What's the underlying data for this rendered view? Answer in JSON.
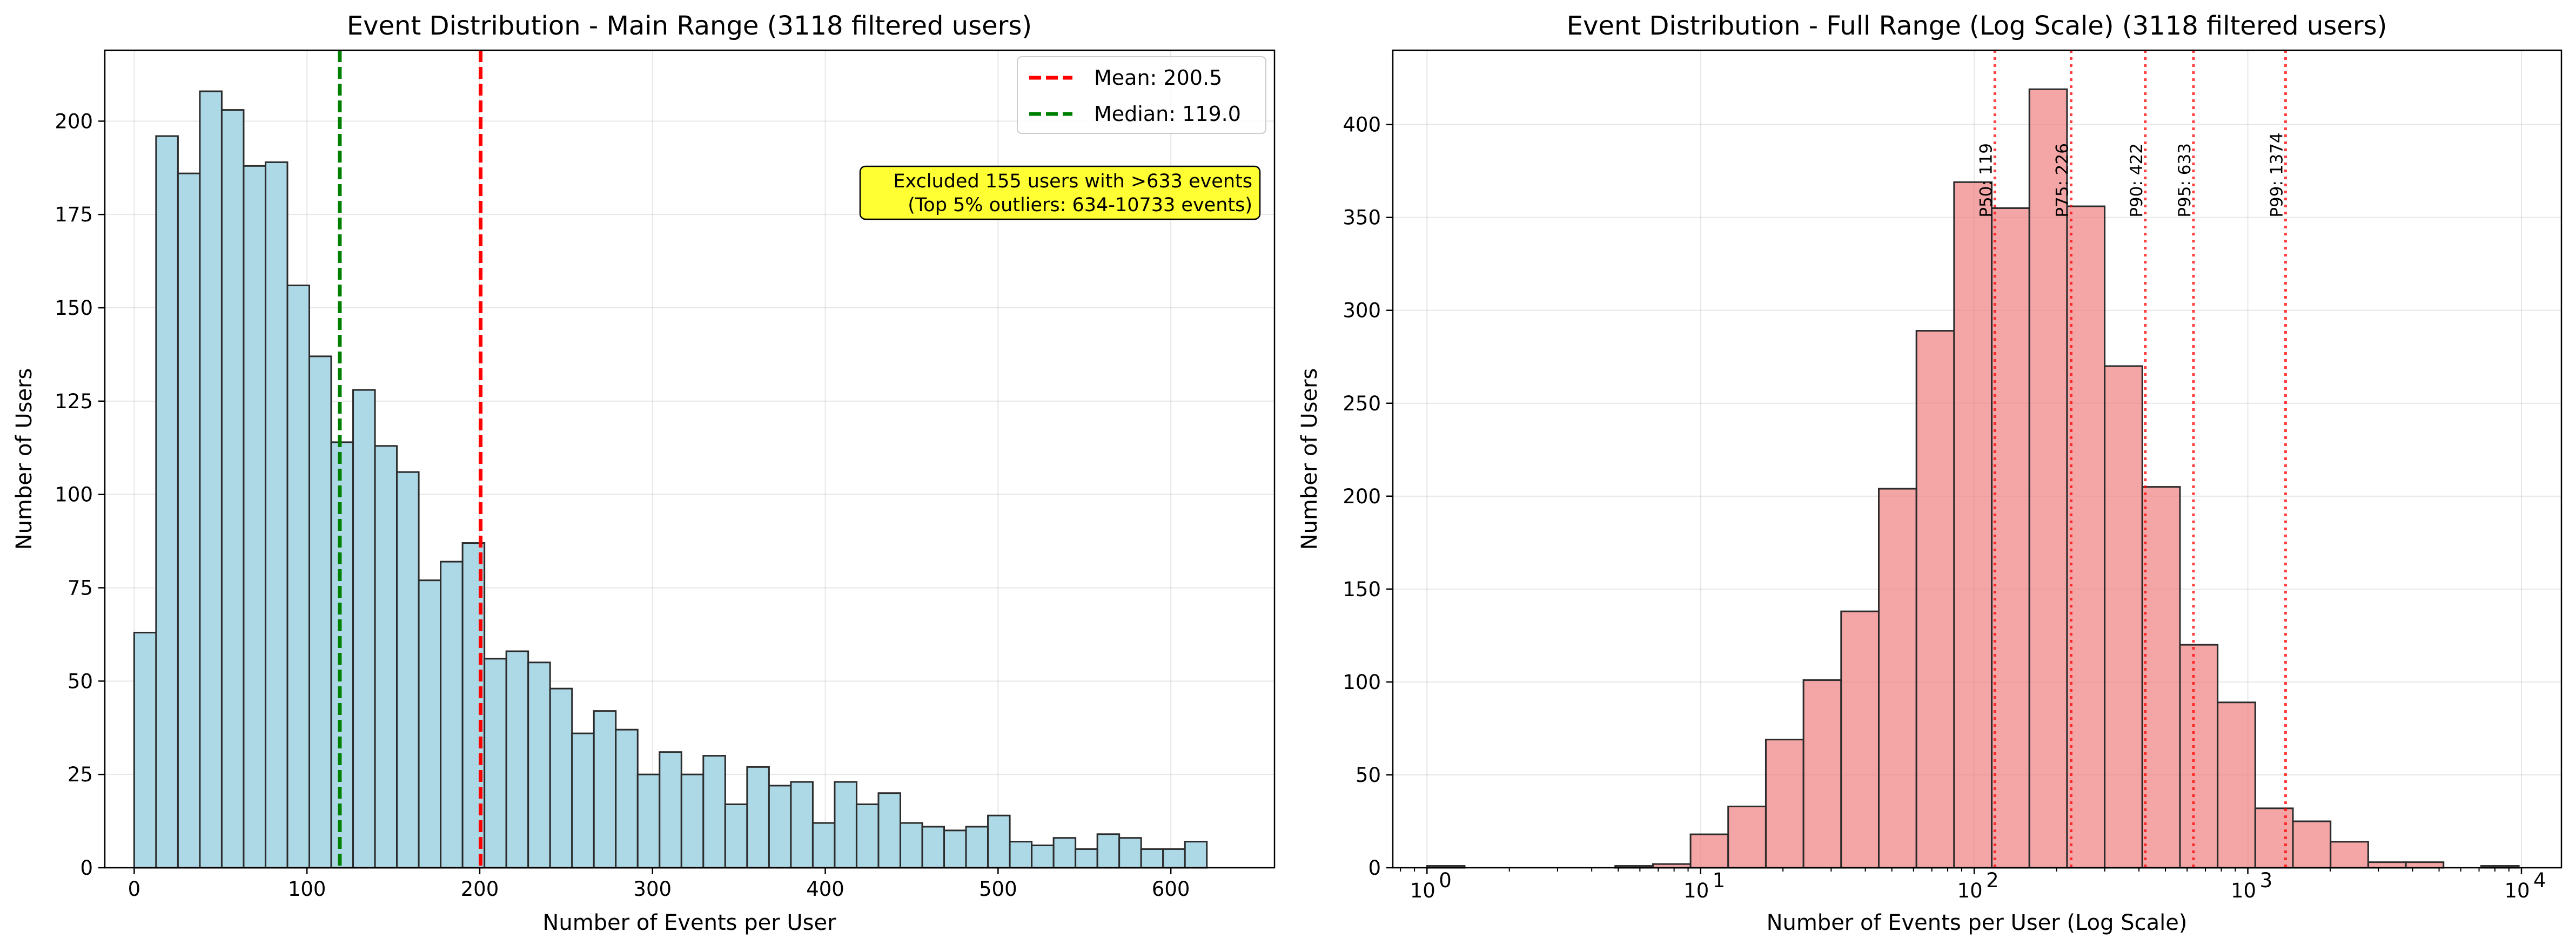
{
  "chart_data": [
    {
      "type": "bar",
      "title": "Event Distribution - Main Range (3118 filtered users)",
      "xlabel": "Number of Events per User",
      "ylabel": "Number of Users",
      "xlim": [
        -17,
        660
      ],
      "ylim": [
        0,
        219
      ],
      "xticks": [
        0,
        100,
        200,
        300,
        400,
        500,
        600
      ],
      "yticks": [
        0,
        25,
        50,
        75,
        100,
        125,
        150,
        175,
        200
      ],
      "grid": true,
      "bin_width": 12.67,
      "bin_start": 0,
      "bar_color": "#add8e6",
      "values": [
        63,
        196,
        186,
        208,
        203,
        188,
        189,
        156,
        137,
        114,
        128,
        113,
        106,
        77,
        82,
        87,
        56,
        58,
        55,
        48,
        36,
        42,
        37,
        25,
        31,
        25,
        30,
        17,
        27,
        22,
        23,
        12,
        23,
        17,
        20,
        12,
        11,
        10,
        11,
        14,
        7,
        6,
        8,
        5,
        9,
        8,
        5,
        5,
        7
      ],
      "lines": [
        {
          "label": "Mean: 200.5",
          "x": 200.5,
          "color": "#ff0000"
        },
        {
          "label": "Median: 119.0",
          "x": 119.0,
          "color": "#008000"
        }
      ],
      "legend": {
        "position": "top-right"
      },
      "annotation": {
        "lines": [
          "Excluded 155 users with >633 events",
          "(Top 5% outliers: 634-10733 events)"
        ],
        "background": "#ffff33"
      }
    },
    {
      "type": "bar",
      "title": "Event Distribution - Full Range (Log Scale) (3118 filtered users)",
      "xlabel": "Number of Events per User (Log Scale)",
      "ylabel": "Number of Users",
      "xscale": "log",
      "xlim": [
        0.75,
        14000
      ],
      "ylim": [
        0,
        440
      ],
      "xticks": [
        1,
        10,
        100,
        1000,
        10000
      ],
      "xtick_labels": [
        {
          "base": "10",
          "exp": "0"
        },
        {
          "base": "10",
          "exp": "1"
        },
        {
          "base": "10",
          "exp": "2"
        },
        {
          "base": "10",
          "exp": "3"
        },
        {
          "base": "10",
          "exp": "4"
        }
      ],
      "yticks": [
        0,
        50,
        100,
        150,
        200,
        250,
        300,
        350,
        400
      ],
      "grid": true,
      "bar_color": "#f08080",
      "bin_log_start": 0,
      "bin_log_step": 0.1376,
      "values": [
        1,
        0,
        0,
        0,
        0,
        1,
        2,
        18,
        33,
        69,
        101,
        138,
        204,
        289,
        369,
        355,
        419,
        356,
        270,
        205,
        120,
        89,
        32,
        25,
        14,
        3,
        3,
        0,
        1,
        0
      ],
      "percentiles": [
        {
          "label": "P50: 119",
          "x": 119
        },
        {
          "label": "P75: 226",
          "x": 226
        },
        {
          "label": "P90: 422",
          "x": 422
        },
        {
          "label": "P95: 633",
          "x": 633
        },
        {
          "label": "P99: 1374",
          "x": 1374
        }
      ],
      "percentile_color": "#ff0000"
    }
  ]
}
